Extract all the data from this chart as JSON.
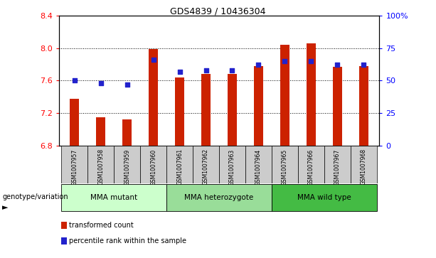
{
  "title": "GDS4839 / 10436304",
  "samples": [
    "GSM1007957",
    "GSM1007958",
    "GSM1007959",
    "GSM1007960",
    "GSM1007961",
    "GSM1007962",
    "GSM1007963",
    "GSM1007964",
    "GSM1007965",
    "GSM1007966",
    "GSM1007967",
    "GSM1007968"
  ],
  "transformed_count": [
    7.38,
    7.15,
    7.12,
    7.99,
    7.64,
    7.68,
    7.68,
    7.78,
    8.04,
    8.06,
    7.77,
    7.78
  ],
  "percentile_rank": [
    50,
    48,
    47,
    66,
    57,
    58,
    58,
    62,
    65,
    65,
    62,
    62
  ],
  "bar_color": "#cc2200",
  "dot_color": "#2222cc",
  "ylim_left": [
    6.8,
    8.4
  ],
  "ylim_right": [
    0,
    100
  ],
  "y_ticks_left": [
    6.8,
    7.2,
    7.6,
    8.0,
    8.4
  ],
  "y_ticks_right": [
    0,
    25,
    50,
    75,
    100
  ],
  "group_colors": [
    "#ccffcc",
    "#99dd99",
    "#44bb44"
  ],
  "group_texts": [
    "MMA mutant",
    "MMA heterozygote",
    "MMA wild type"
  ],
  "group_ranges": [
    [
      0,
      3
    ],
    [
      4,
      7
    ],
    [
      8,
      11
    ]
  ],
  "group_label": "genotype/variation",
  "legend_red": "transformed count",
  "legend_blue": "percentile rank within the sample",
  "bar_width": 0.35,
  "bar_base": 6.8,
  "sample_bg": "#cccccc",
  "right_tick_labels": [
    "0",
    "25",
    "50",
    "75",
    "100%"
  ]
}
